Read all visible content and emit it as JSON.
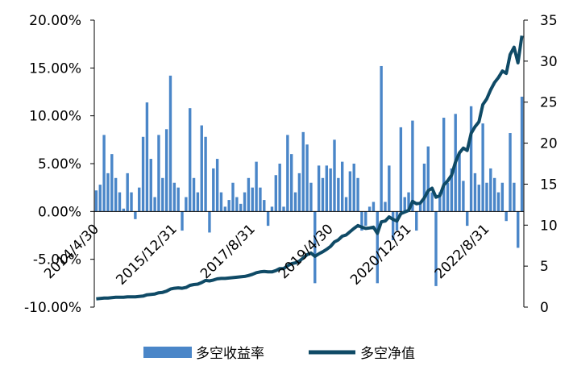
{
  "chart_data": {
    "type": "bar-line",
    "categories": [
      "2014/4/30",
      null,
      null,
      null,
      null,
      null,
      null,
      null,
      null,
      null,
      null,
      null,
      null,
      null,
      null,
      null,
      null,
      null,
      null,
      null,
      "2015/12/31",
      null,
      null,
      null,
      null,
      null,
      null,
      null,
      null,
      null,
      null,
      null,
      null,
      null,
      null,
      null,
      null,
      null,
      null,
      null,
      "2017/8/31",
      null,
      null,
      null,
      null,
      null,
      null,
      null,
      null,
      null,
      null,
      null,
      null,
      null,
      null,
      null,
      null,
      null,
      null,
      null,
      "2019/4/30",
      null,
      null,
      null,
      null,
      null,
      null,
      null,
      null,
      null,
      null,
      null,
      null,
      null,
      null,
      null,
      null,
      null,
      null,
      null,
      "2020/12/31",
      null,
      null,
      null,
      null,
      null,
      null,
      null,
      null,
      null,
      null,
      null,
      null,
      null,
      null,
      null,
      null,
      null,
      null,
      null,
      "2022/8/31",
      null,
      null,
      null,
      null,
      null,
      null,
      null,
      null,
      null
    ],
    "series": [
      {
        "name": "多空收益率",
        "color": "#4a86c8",
        "values": [
          2.2,
          2.8,
          8,
          4,
          6,
          3.5,
          2,
          0.3,
          4,
          2,
          -0.8,
          2.5,
          7.8,
          11.4,
          5.5,
          1.5,
          8,
          3.5,
          8.6,
          14.2,
          3,
          2.5,
          -2,
          1.5,
          10.8,
          3.5,
          2,
          9,
          7.8,
          -2.2,
          4.5,
          5.5,
          2,
          0.5,
          1.2,
          3,
          1.5,
          0.8,
          2,
          3.5,
          2.5,
          5.2,
          2.5,
          1.2,
          -1.5,
          0.5,
          3.8,
          5,
          0.5,
          8,
          6,
          2,
          4,
          8.3,
          7,
          3,
          -7.5,
          4.8,
          3.5,
          4.8,
          4.5,
          7.5,
          3.5,
          5.2,
          1.5,
          4.2,
          5,
          3.5,
          -2,
          -1.5,
          0.5,
          1,
          -7.5,
          15.2,
          1,
          4.8,
          -3,
          -2,
          8.8,
          1.5,
          2,
          9.5,
          -2,
          1,
          5,
          6.8,
          2,
          -7.8,
          2,
          9.8,
          3,
          4.5,
          10.2,
          6,
          3.2,
          -1.5,
          11,
          4,
          2.8,
          9.2,
          3,
          4.5,
          3.5,
          2,
          3,
          -1,
          8.2,
          3,
          -3.8,
          12
        ]
      },
      {
        "name": "多空净值",
        "color": "#0f4a66",
        "axis": "y2",
        "values": [
          1.0,
          1.05,
          1.1,
          1.1,
          1.15,
          1.2,
          1.2,
          1.2,
          1.25,
          1.25,
          1.25,
          1.3,
          1.35,
          1.5,
          1.55,
          1.6,
          1.75,
          1.8,
          1.95,
          2.2,
          2.3,
          2.35,
          2.3,
          2.4,
          2.65,
          2.75,
          2.8,
          3.0,
          3.25,
          3.2,
          3.3,
          3.45,
          3.5,
          3.5,
          3.55,
          3.6,
          3.65,
          3.7,
          3.75,
          3.85,
          4.0,
          4.2,
          4.3,
          4.35,
          4.3,
          4.3,
          4.45,
          4.7,
          4.7,
          5.05,
          5.3,
          5.4,
          5.6,
          6.0,
          6.4,
          6.6,
          6.2,
          6.5,
          6.75,
          7.05,
          7.4,
          7.95,
          8.2,
          8.65,
          8.8,
          9.2,
          9.6,
          9.95,
          9.75,
          9.6,
          9.65,
          9.75,
          9.0,
          10.4,
          10.5,
          11.0,
          10.7,
          10.5,
          11.4,
          11.6,
          11.8,
          12.9,
          12.6,
          12.7,
          13.3,
          14.2,
          14.5,
          13.4,
          13.6,
          14.9,
          15.4,
          16.1,
          17.7,
          18.8,
          19.4,
          19.1,
          21.2,
          22.0,
          22.6,
          24.7,
          25.4,
          26.5,
          27.4,
          28.0,
          28.8,
          28.5,
          30.8,
          31.7,
          29.8,
          33.1
        ]
      }
    ],
    "ylim": [
      -10,
      20
    ],
    "yticks": [
      {
        "value": -10,
        "label": "-10.00%"
      },
      {
        "value": -5,
        "label": "-5.00%"
      },
      {
        "value": 0,
        "label": "0.00%"
      },
      {
        "value": 5,
        "label": "5.00%"
      },
      {
        "value": 10,
        "label": "10.00%"
      },
      {
        "value": 15,
        "label": "15.00%"
      },
      {
        "value": 20,
        "label": "20.00%"
      }
    ],
    "y2lim": [
      0,
      35
    ],
    "y2ticks": [
      0,
      5,
      10,
      15,
      20,
      25,
      30,
      35
    ]
  }
}
